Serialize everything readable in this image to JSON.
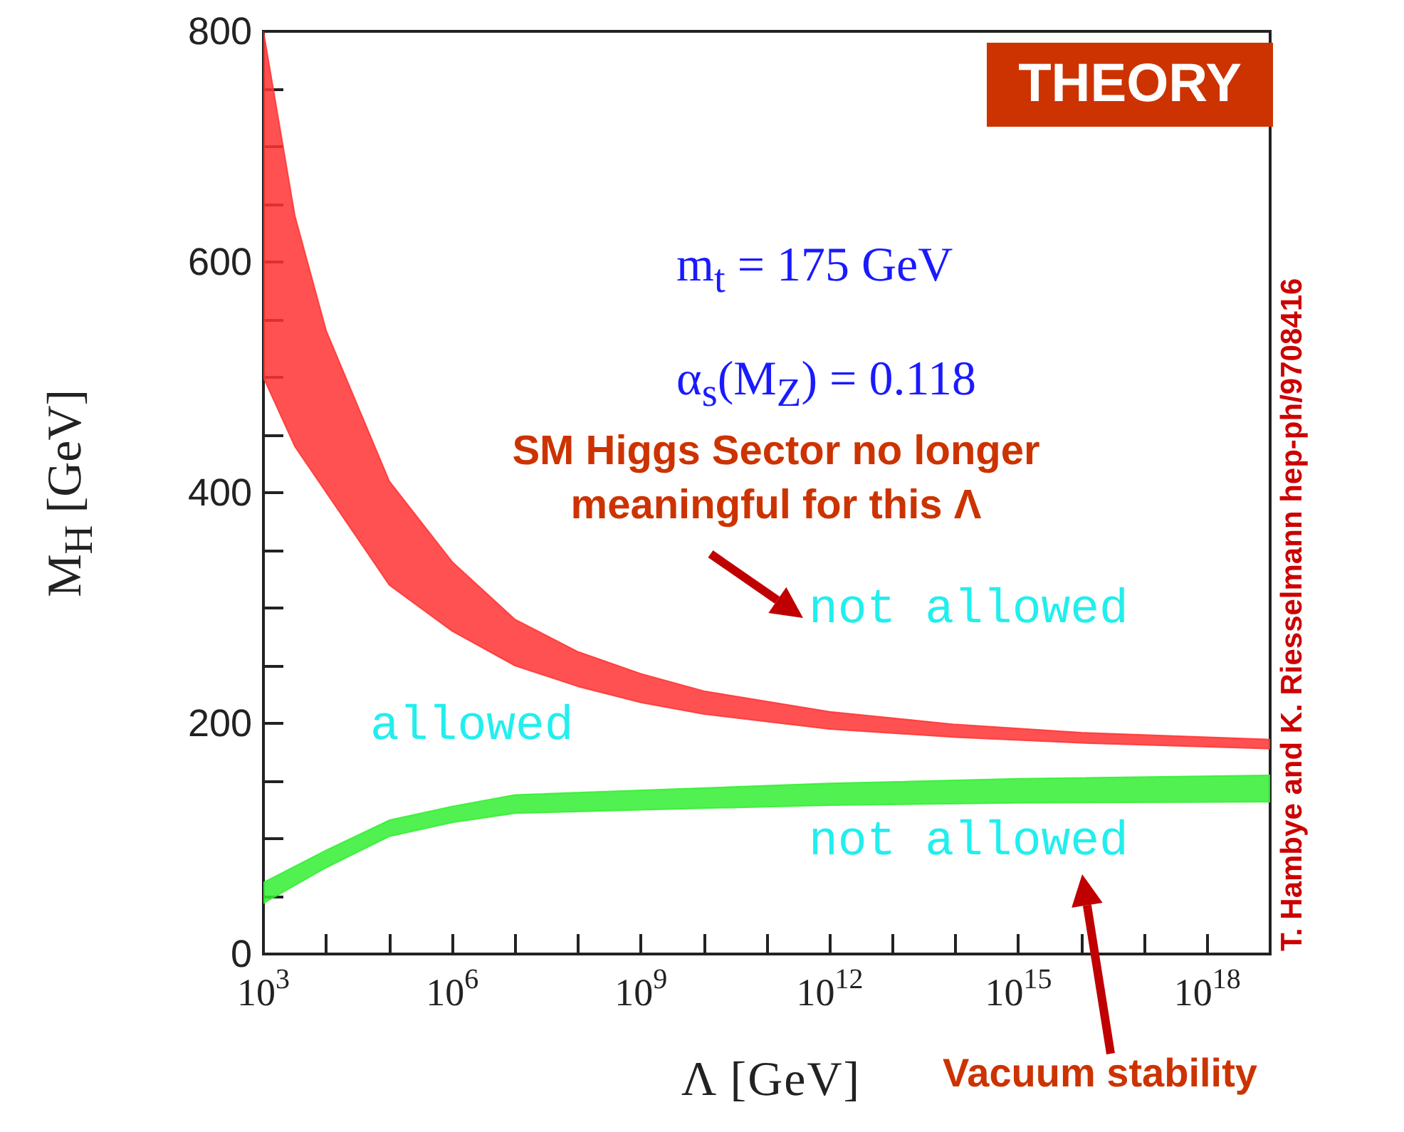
{
  "chart_data": {
    "type": "area",
    "xlabel": "Λ [GeV]",
    "ylabel": "M$_{H}$ [GeV]",
    "log": "x",
    "grid": false,
    "xlim": [
      1000,
      1e+19
    ],
    "ylim": [
      0,
      800
    ],
    "xticks": [
      {
        "value": 1000,
        "label": "10$^{3}$"
      },
      {
        "value": 10000.0,
        "label": null
      },
      {
        "value": 100000.0,
        "label": null
      },
      {
        "value": 1000000.0,
        "label": "10$^{6}$"
      },
      {
        "value": 10000000.0,
        "label": null
      },
      {
        "value": 100000000.0,
        "label": null
      },
      {
        "value": 1000000000.0,
        "label": "10$^{9}$"
      },
      {
        "value": 10000000000.0,
        "label": null
      },
      {
        "value": 100000000000.0,
        "label": null
      },
      {
        "value": 1000000000000.0,
        "label": "10$^{12}$"
      },
      {
        "value": 10000000000000.0,
        "label": null
      },
      {
        "value": 100000000000000.0,
        "label": null
      },
      {
        "value": 1000000000000000.0,
        "label": "10$^{15}$"
      },
      {
        "value": 1e+16,
        "label": null
      },
      {
        "value": 1e+17,
        "label": null
      },
      {
        "value": 1e+18,
        "label": "10$^{18}$"
      }
    ],
    "yticks": [
      0,
      {
        "value": 50,
        "label": null
      },
      {
        "value": 100,
        "label": null
      },
      {
        "value": 150,
        "label": null
      },
      200,
      {
        "value": 250,
        "label": null
      },
      {
        "value": 300,
        "label": null
      },
      {
        "value": 350,
        "label": null
      },
      400,
      {
        "value": 450,
        "label": null
      },
      {
        "value": 500,
        "label": null
      },
      {
        "value": 550,
        "label": null
      },
      600,
      {
        "value": 650,
        "label": null
      },
      {
        "value": 700,
        "label": null
      },
      {
        "value": 750,
        "label": null
      },
      800
    ],
    "series": [
      {
        "color": "#ff3333",
        "x": [
          1000,
          3162,
          10000,
          100000,
          1000000.0,
          10000000.0,
          100000000.0,
          1000000000.0,
          10000000000.0,
          1000000000000.0,
          100000000000000.0,
          1e+16,
          1e+19
        ],
        "values": [
          null,
          null,
          null,
          null,
          null,
          null,
          null,
          null,
          null,
          null,
          null,
          null,
          null
        ],
        "upper": [
          800,
          640,
          540,
          410,
          340,
          290,
          262,
          243,
          228,
          210,
          199,
          192,
          186
        ],
        "lower": [
          500,
          440,
          400,
          320,
          280,
          250,
          232,
          218,
          208,
          195,
          188,
          183,
          178
        ]
      },
      {
        "color": "#33ee33",
        "x": [
          1000,
          10000,
          100000,
          1000000.0,
          10000000.0,
          1000000000.0,
          1000000000000.0,
          1000000000000000.0,
          1e+19
        ],
        "values": [
          null,
          null,
          null,
          null,
          null,
          null,
          null,
          null,
          null
        ],
        "upper": [
          62,
          90,
          116,
          128,
          138,
          142,
          148,
          152,
          155
        ],
        "lower": [
          44,
          75,
          102,
          114,
          122,
          125,
          129,
          131,
          132
        ]
      }
    ],
    "annotations": [
      "THEORY",
      "m$_{t}$ = 175 GeV",
      "α$_{s}$(M$_{Z}$) = 0.118",
      "SM Higgs Sector no longer meaningful for this Λ",
      "not allowed",
      "allowed",
      "not allowed",
      "Vacuum stability",
      "T. Hambye and K. Riesselmann hep-ph/9708416"
    ]
  }
}
